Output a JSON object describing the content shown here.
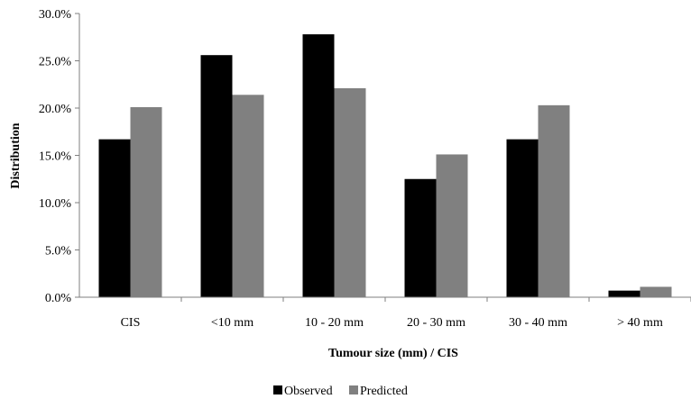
{
  "chart_data": {
    "type": "bar",
    "categories": [
      "CIS",
      "<10 mm",
      "10 - 20 mm",
      "20 - 30 mm",
      "30 - 40 mm",
      "> 40 mm"
    ],
    "series": [
      {
        "name": "Observed",
        "values": [
          16.7,
          25.6,
          27.8,
          12.5,
          16.7,
          0.7
        ],
        "color": "#000000"
      },
      {
        "name": "Predicted",
        "values": [
          20.1,
          21.4,
          22.1,
          15.1,
          20.3,
          1.1
        ],
        "color": "#808080"
      }
    ],
    "xlabel": "Tumour size (mm) / CIS",
    "ylabel": "Distribution",
    "ylim": [
      0,
      30
    ],
    "yticks": [
      "0.0%",
      "5.0%",
      "10.0%",
      "15.0%",
      "20.0%",
      "25.0%",
      "30.0%"
    ],
    "grid": false,
    "legend_position": "bottom-center"
  }
}
